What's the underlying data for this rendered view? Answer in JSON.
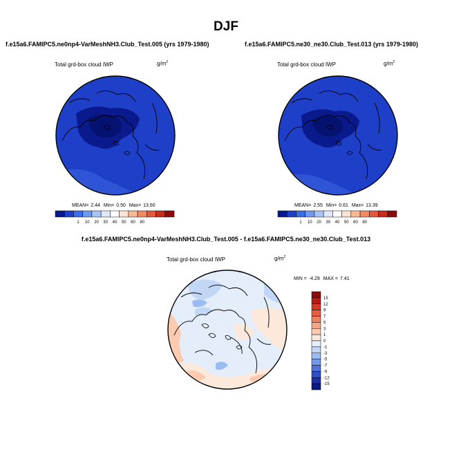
{
  "main_title": "DJF",
  "panels": [
    {
      "case_title": "f.e15a6.FAMIPC5.ne0np4-VarMeshNH3.Club_Test.005 (yrs 1979-1980)",
      "variable": "Total grd-box cloud IWP",
      "units_base": "g/m",
      "units_exp": "2",
      "stats": {
        "mean_label": "MEAN=",
        "mean": "2.44",
        "min_label": "Min=",
        "min": "0.50",
        "max_label": "Max=",
        "max": "13.60"
      }
    },
    {
      "case_title": "f.e15a6.FAMIPC5.ne30_ne30.Club_Test.013 (yrs 1979-1980)",
      "variable": "Total grd-box cloud IWP",
      "units_base": "g/m",
      "units_exp": "2",
      "stats": {
        "mean_label": "MEAN=",
        "mean": "2.55",
        "min_label": "Min=",
        "min": "0.61",
        "max_label": "Max=",
        "max": "13.39"
      }
    },
    {
      "case_title": "f.e15a6.FAMIPC5.ne0np4-VarMeshNH3.Club_Test.005 - f.e15a6.FAMIPC5.ne30_ne30.Club_Test.013",
      "variable": "Total grd-box cloud IWP",
      "units_base": "g/m",
      "units_exp": "2",
      "stats": {
        "min_label": "MIN =",
        "min": "-4.29",
        "max_label": "MAX =",
        "max": "7.41"
      }
    }
  ],
  "chart_data": [
    {
      "type": "heatmap",
      "projection": "polar-stereographic-north",
      "title": "f.e15a6.FAMIPC5.ne0np4-VarMeshNH3.Club_Test.005 (yrs 1979-1980)",
      "variable": "Total grd-box cloud IWP",
      "units": "g/m2",
      "mean": 2.44,
      "min": 0.5,
      "max": 13.6,
      "colorbar": {
        "orientation": "horizontal",
        "levels": [
          1,
          10,
          20,
          30,
          40,
          50,
          60,
          80
        ],
        "colors": [
          "#0a1a8c",
          "#1e3fc8",
          "#3a6ee6",
          "#6f98f0",
          "#a8c4f5",
          "#dfe9fb",
          "#ffffff",
          "#fde3d3",
          "#f9b896",
          "#f28a62",
          "#e2593a",
          "#c72d1b",
          "#8e0b0b"
        ]
      }
    },
    {
      "type": "heatmap",
      "projection": "polar-stereographic-north",
      "title": "f.e15a6.FAMIPC5.ne30_ne30.Club_Test.013 (yrs 1979-1980)",
      "variable": "Total grd-box cloud IWP",
      "units": "g/m2",
      "mean": 2.55,
      "min": 0.61,
      "max": 13.39,
      "colorbar": {
        "orientation": "horizontal",
        "levels": [
          1,
          10,
          20,
          30,
          40,
          50,
          60,
          80
        ],
        "colors": [
          "#0a1a8c",
          "#1e3fc8",
          "#3a6ee6",
          "#6f98f0",
          "#a8c4f5",
          "#dfe9fb",
          "#ffffff",
          "#fde3d3",
          "#f9b896",
          "#f28a62",
          "#e2593a",
          "#c72d1b",
          "#8e0b0b"
        ]
      }
    },
    {
      "type": "heatmap",
      "projection": "polar-stereographic-north",
      "title": "f.e15a6.FAMIPC5.ne0np4-VarMeshNH3.Club_Test.005 - f.e15a6.FAMIPC5.ne30_ne30.Club_Test.013",
      "variable": "Total grd-box cloud IWP",
      "units": "g/m2",
      "min": -4.29,
      "max": 7.41,
      "colorbar": {
        "orientation": "vertical",
        "levels": [
          15,
          12,
          9,
          7,
          5,
          3,
          1,
          0,
          -1,
          -3,
          -5,
          -7,
          -9,
          -12,
          -15
        ],
        "colors": [
          "#8e0b0b",
          "#b51c16",
          "#d33a25",
          "#e55c3e",
          "#ef8060",
          "#f6a685",
          "#fbcab0",
          "#fde8dc",
          "#e4eefb",
          "#c2d6f6",
          "#9bbcf0",
          "#7599e8",
          "#4f72dc",
          "#2f4fc8",
          "#1b2fa6",
          "#0a1a80"
        ]
      }
    }
  ]
}
